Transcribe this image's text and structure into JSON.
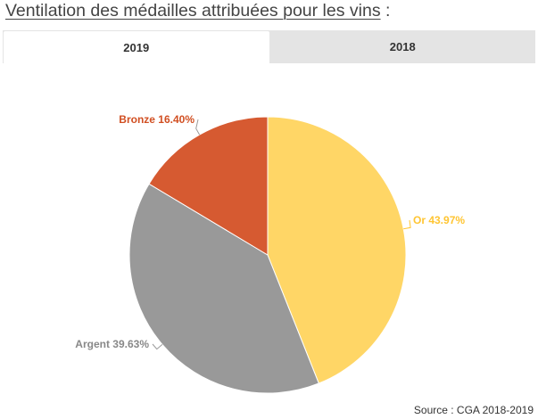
{
  "page": {
    "title": "Ventilation des médailles attribuées pour les vins",
    "title_suffix": " :",
    "source": "Source : CGA 2018-2019"
  },
  "tabs": [
    {
      "label": "2019",
      "active": true
    },
    {
      "label": "2018",
      "active": false
    }
  ],
  "chart_data": {
    "type": "pie",
    "title": "",
    "categories": [
      "Or",
      "Argent",
      "Bronze"
    ],
    "values": [
      43.97,
      39.63,
      16.4
    ],
    "labels": [
      "Or 43.97%",
      "Argent 39.63%",
      "Bronze 16.40%"
    ],
    "colors": [
      "#ffd666",
      "#999999",
      "#d65a31"
    ],
    "legend": "none"
  }
}
